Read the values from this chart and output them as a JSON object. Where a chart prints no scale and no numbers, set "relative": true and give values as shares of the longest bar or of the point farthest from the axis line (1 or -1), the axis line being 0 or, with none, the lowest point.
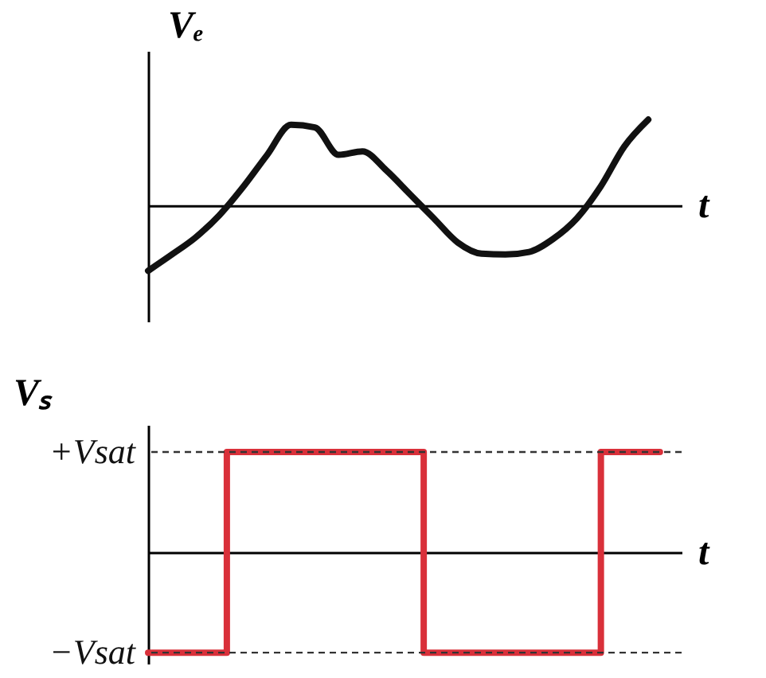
{
  "chart_data": [
    {
      "type": "line",
      "ylabel": "Vₑ",
      "xlabel": "t",
      "relative": true,
      "tick_labels": false,
      "categories": [
        null,
        null,
        null,
        null,
        null,
        null,
        null,
        null,
        null,
        null,
        null,
        null,
        null,
        null,
        null,
        null,
        null,
        null,
        null,
        null,
        null,
        null
      ],
      "series": [
        {
          "color": "#111111",
          "values": [
            -0.76,
            -0.57,
            -0.37,
            -0.11,
            0.22,
            0.59,
            0.94,
            0.91,
            0.59,
            0.63,
            0.41,
            0.13,
            -0.15,
            -0.43,
            -0.56,
            -0.57,
            -0.54,
            -0.39,
            -0.15,
            0.22,
            0.69,
            1.0
          ]
        }
      ]
    },
    {
      "type": "step",
      "ylabel": "Vₛ",
      "xlabel": "t",
      "relative": true,
      "tick_labels": false,
      "categories": [
        null,
        null,
        null,
        null,
        null,
        null,
        null,
        null,
        null,
        null,
        null,
        null,
        null,
        null,
        null,
        null,
        null,
        null,
        null,
        null,
        null,
        null,
        null,
        null,
        null,
        null,
        null
      ],
      "series": [
        {
          "color": "#d9303a",
          "values": [
            -1,
            -1,
            -1,
            -1,
            1,
            1,
            1,
            1,
            1,
            1,
            1,
            1,
            1,
            1,
            -1,
            -1,
            -1,
            -1,
            -1,
            -1,
            -1,
            -1,
            -1,
            1,
            1,
            1,
            1
          ]
        }
      ],
      "ref_lines": [
        {
          "axis": "y",
          "value": 1,
          "label": "+Vsat",
          "line_style": "dashed",
          "color": "#333333"
        },
        {
          "axis": "y",
          "value": -1,
          "label": "−Vsat",
          "line_style": "dashed",
          "color": "#333333"
        }
      ]
    }
  ]
}
